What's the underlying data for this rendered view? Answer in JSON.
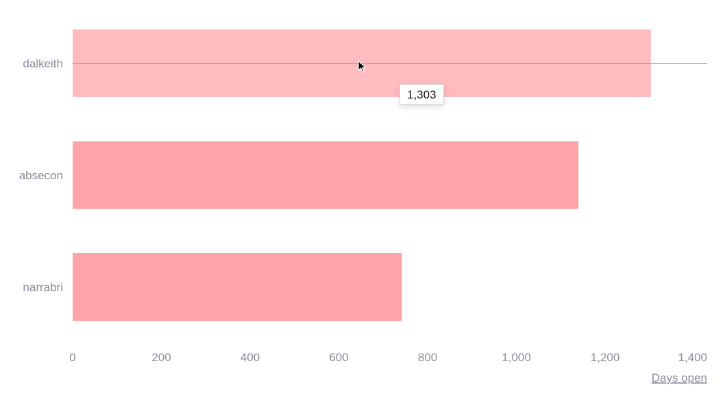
{
  "chart_data": {
    "type": "bar",
    "orientation": "horizontal",
    "categories": [
      "dalkeith",
      "absecon",
      "narrabri"
    ],
    "values": [
      1303,
      1140,
      742
    ],
    "xlabel": "Days open",
    "xlim": [
      0,
      1430
    ],
    "xticks": [
      0,
      200,
      400,
      600,
      800,
      1000,
      1200,
      1400
    ],
    "xtick_labels": [
      "0",
      "200",
      "400",
      "600",
      "800",
      "1,000",
      "1,200",
      "1,400"
    ],
    "grid": false,
    "highlighted_category": "dalkeith",
    "tooltip": "1,303",
    "colors": {
      "bar": "#ffa4a9",
      "bar_highlight": "#ffbcc0",
      "text": "#8b8a9e",
      "crosshair": "#9a9a9a"
    }
  }
}
